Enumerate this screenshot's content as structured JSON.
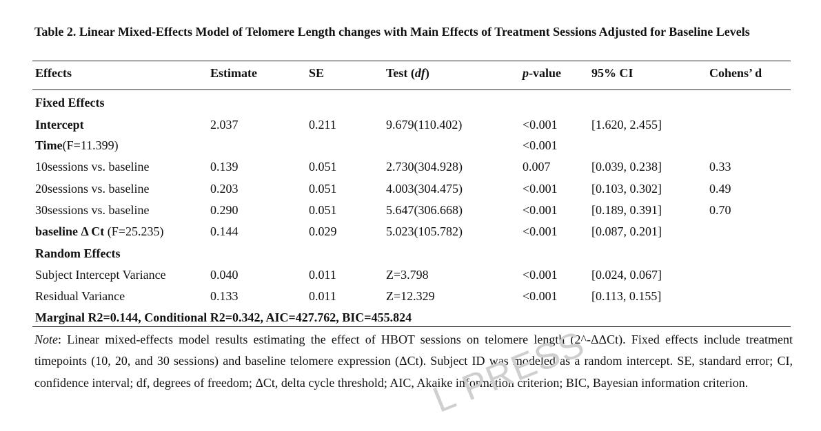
{
  "caption": "Table 2. Linear Mixed-Effects Model of Telomere Length changes with Main Effects of Treatment Sessions Adjusted for Baseline Levels",
  "header": {
    "effects": "Effects",
    "estimate": "Estimate",
    "se": "SE",
    "test_prefix": "Test (",
    "test_df": "df",
    "test_suffix": ")",
    "p_italic": "p",
    "p_suffix": "-value",
    "ci": "95% CI",
    "cohens": "Cohens’ d"
  },
  "sections": {
    "fixed": "Fixed Effects",
    "random": "Random Effects"
  },
  "rows": {
    "intercept": {
      "label": "Intercept",
      "estimate": "2.037",
      "se": "0.211",
      "test": "9.679(110.402)",
      "p": "<0.001",
      "ci": "[1.620, 2.455]",
      "d": ""
    },
    "time": {
      "label_bold": "Time",
      "label_rest": "(F=11.399)",
      "estimate": "",
      "se": "",
      "test": "",
      "p": "<0.001",
      "ci": "",
      "d": ""
    },
    "s10": {
      "label": "10sessions vs. baseline",
      "estimate": "0.139",
      "se": "0.051",
      "test": "2.730(304.928)",
      "p": "0.007",
      "ci": "[0.039, 0.238]",
      "d": "0.33"
    },
    "s20": {
      "label": "20sessions vs. baseline",
      "estimate": "0.203",
      "se": "0.051",
      "test": "4.003(304.475)",
      "p": "<0.001",
      "ci": "[0.103, 0.302]",
      "d": "0.49"
    },
    "s30": {
      "label": "30sessions vs. baseline",
      "estimate": "0.290",
      "se": "0.051",
      "test": "5.647(306.668)",
      "p": "<0.001",
      "ci": "[0.189, 0.391]",
      "d": "0.70"
    },
    "baseline": {
      "label_bold": "baseline Δ Ct",
      "label_rest": " (F=25.235)",
      "estimate": "0.144",
      "se": "0.029",
      "test": "5.023(105.782)",
      "p": "<0.001",
      "ci": "[0.087, 0.201]",
      "d": ""
    },
    "subject": {
      "label": "Subject Intercept Variance",
      "estimate": "0.040",
      "se": "0.011",
      "test": "Z=3.798",
      "p": "<0.001",
      "ci": "[0.024, 0.067]",
      "d": ""
    },
    "residual": {
      "label": "Residual Variance",
      "estimate": "0.133",
      "se": "0.011",
      "test": "Z=12.329",
      "p": "<0.001",
      "ci": "[0.113, 0.155]",
      "d": ""
    }
  },
  "fit_stats": "Marginal R2=0.144, Conditional R2=0.342, AIC=427.762, BIC=455.824",
  "note": {
    "label": "Note",
    "text": ": Linear mixed-effects model results estimating the effect of HBOT sessions on telomere length (2^-ΔΔCt). Fixed effects include treatment timepoints (10, 20, and 30 sessions) and baseline telomere expression (ΔCt). Subject ID was modeled as a random intercept. SE, standard error; CI, confidence interval; df, degrees of freedom; ΔCt, delta cycle threshold; AIC, Akaike information criterion; BIC, Bayesian information criterion."
  },
  "watermark": "L PRESS"
}
